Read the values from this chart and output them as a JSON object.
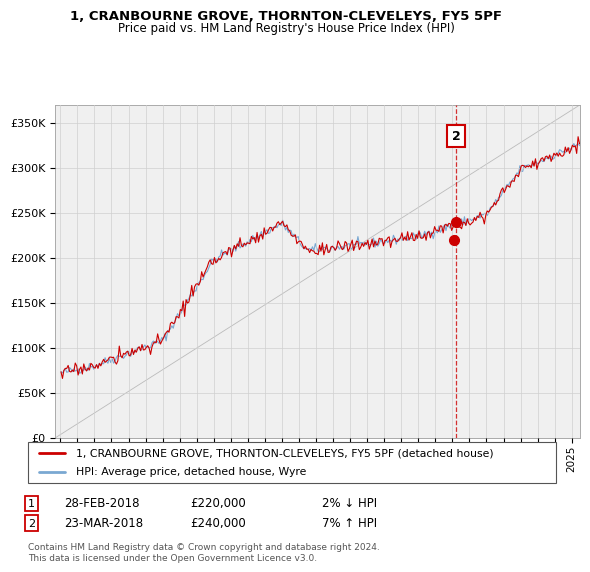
{
  "title1": "1, CRANBOURNE GROVE, THORNTON-CLEVELEYS, FY5 5PF",
  "title2": "Price paid vs. HM Land Registry's House Price Index (HPI)",
  "legend_line1": "1, CRANBOURNE GROVE, THORNTON-CLEVELEYS, FY5 5PF (detached house)",
  "legend_line2": "HPI: Average price, detached house, Wyre",
  "transaction1": {
    "num": "1",
    "date": "28-FEB-2018",
    "price": "£220,000",
    "hpi": "2% ↓ HPI"
  },
  "transaction2": {
    "num": "2",
    "date": "23-MAR-2018",
    "price": "£240,000",
    "hpi": "7% ↑ HPI"
  },
  "footnote": "Contains HM Land Registry data © Crown copyright and database right 2024.\nThis data is licensed under the Open Government Licence v3.0.",
  "red_color": "#cc0000",
  "blue_color": "#7aa8d2",
  "grid_color": "#d0d0d0",
  "bg_color": "#f0f0f0",
  "ylim": [
    0,
    370000
  ],
  "yticks": [
    0,
    50000,
    100000,
    150000,
    200000,
    250000,
    300000,
    350000
  ],
  "xlim_left": 1994.7,
  "xlim_right": 2025.5,
  "sale1_x": 2018.08,
  "sale1_y": 220000,
  "sale2_x": 2018.22,
  "sale2_y": 240000,
  "dashed_x": 2018.22
}
